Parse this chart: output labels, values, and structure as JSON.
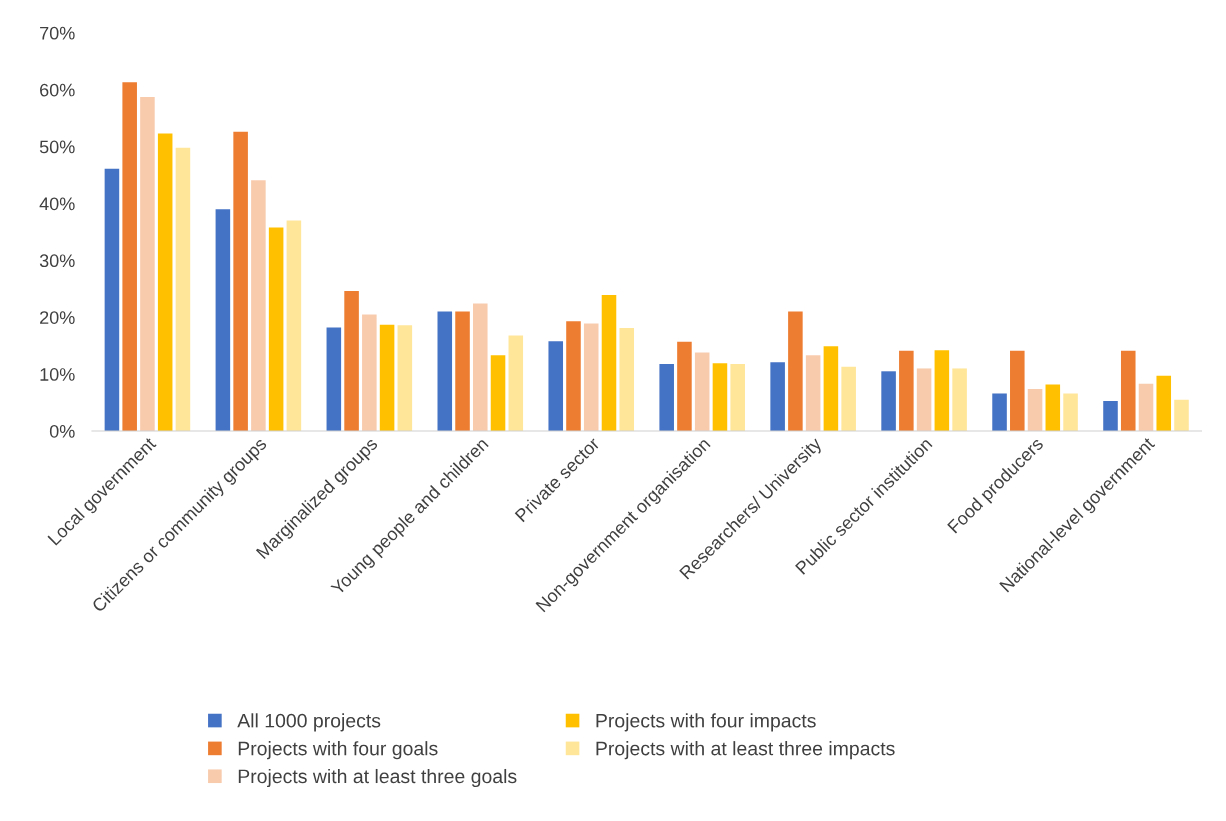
{
  "chart_data": {
    "type": "bar",
    "categories": [
      "Local government",
      "Citizens or community groups",
      "Marginalized groups",
      "Young people and children",
      "Private sector",
      "Non-government organisation",
      "Researchers/ University",
      "Public sector institution",
      "Food producers",
      "National-level government"
    ],
    "series": [
      {
        "name": "All 1000 projects",
        "color": "#4472c4",
        "values": [
          46.1,
          39.0,
          18.2,
          21.0,
          15.8,
          11.8,
          12.1,
          10.5,
          6.6,
          5.3
        ]
      },
      {
        "name": "Projects with four goals",
        "color": "#ed7d31",
        "values": [
          61.3,
          52.6,
          24.6,
          21.0,
          19.3,
          15.7,
          21.0,
          14.1,
          14.1,
          14.1
        ]
      },
      {
        "name": "Projects with at least three goals",
        "color": "#f8cbad",
        "values": [
          58.7,
          44.1,
          20.5,
          22.4,
          18.9,
          13.8,
          13.3,
          11.0,
          7.4,
          8.3
        ]
      },
      {
        "name": "Projects with four impacts",
        "color": "#ffc000",
        "values": [
          52.3,
          35.8,
          18.7,
          13.3,
          23.9,
          11.9,
          14.9,
          14.2,
          8.2,
          9.7
        ]
      },
      {
        "name": "Projects with at least three impacts",
        "color": "#ffe699",
        "values": [
          49.8,
          37.0,
          18.6,
          16.8,
          18.1,
          11.8,
          11.3,
          11.0,
          6.6,
          5.5
        ]
      }
    ],
    "ylim": [
      0,
      70
    ],
    "yticks": [
      {
        "value": 0,
        "label": "0%"
      },
      {
        "value": 10,
        "label": "10%"
      },
      {
        "value": 20,
        "label": "20%"
      },
      {
        "value": 30,
        "label": "30%"
      },
      {
        "value": 40,
        "label": "40%"
      },
      {
        "value": 50,
        "label": "50%"
      },
      {
        "value": 60,
        "label": "60%"
      },
      {
        "value": 70,
        "label": "70%"
      }
    ],
    "grid": false,
    "legend": "bottom"
  }
}
